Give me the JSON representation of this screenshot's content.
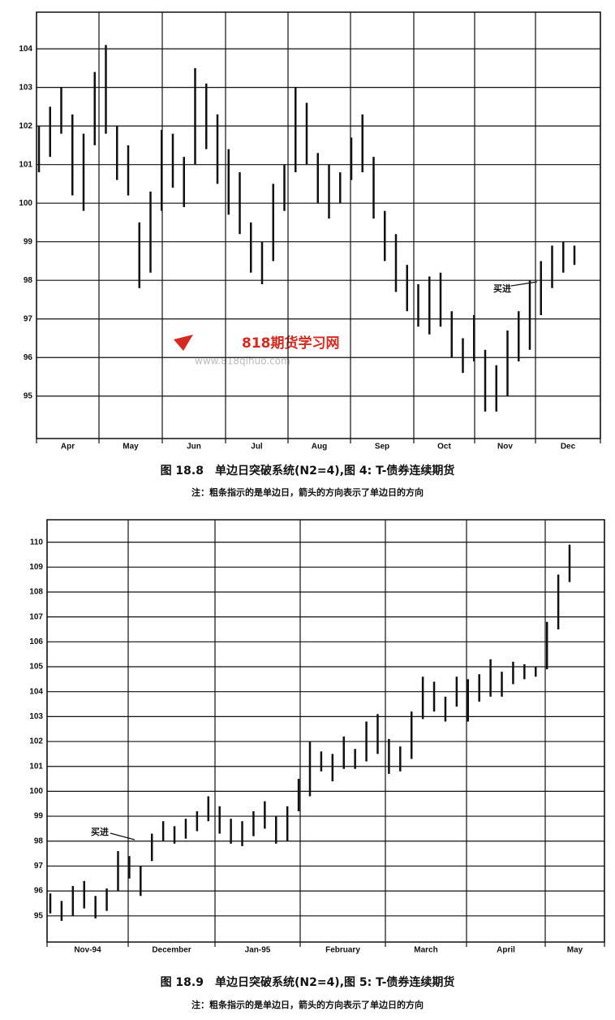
{
  "watermark": {
    "title": "818期货学习网",
    "url": "www.818qihuo.com"
  },
  "chart_data": [
    {
      "type": "ohlc",
      "title": "图 18.8　单边日突破系统(N2=4),图 4: T-债券连续期货",
      "subtitle": "注：粗条指示的是单边日，箭头的方向表示了单边日的方向",
      "annotation": "买进",
      "categories": [
        "Apr",
        "May",
        "Jun",
        "Jul",
        "Aug",
        "Sep",
        "Oct",
        "Nov",
        "Dec"
      ],
      "ylim": [
        93.9,
        104.95
      ],
      "yticks": [
        95,
        96,
        97,
        98,
        99,
        100,
        101,
        102,
        103,
        104
      ],
      "grid": true,
      "color": "#111111",
      "high": [
        102.0,
        102.5,
        103.0,
        102.3,
        101.8,
        103.4,
        104.1,
        102.0,
        101.5,
        99.5,
        100.3,
        101.9,
        101.8,
        101.2,
        103.5,
        103.1,
        102.3,
        101.4,
        100.8,
        99.5,
        99.0,
        100.5,
        101.0,
        103.0,
        102.6,
        101.3,
        101.0,
        100.8,
        101.7,
        102.3,
        101.2,
        99.8,
        99.2,
        98.4,
        97.9,
        98.1,
        98.2,
        97.2,
        96.5,
        97.1,
        96.2,
        95.8,
        96.7,
        97.2,
        98.0,
        98.5,
        98.9,
        99.0,
        98.9
      ],
      "low": [
        100.8,
        101.2,
        101.8,
        100.2,
        99.8,
        101.5,
        101.8,
        100.6,
        100.2,
        97.8,
        98.2,
        99.8,
        100.4,
        99.9,
        101.0,
        101.4,
        100.5,
        99.7,
        99.2,
        98.2,
        97.9,
        98.5,
        99.8,
        100.8,
        101.0,
        100.0,
        99.6,
        100.0,
        100.6,
        100.8,
        99.6,
        98.5,
        97.7,
        97.2,
        96.8,
        96.6,
        96.8,
        96.0,
        95.6,
        95.9,
        94.6,
        94.6,
        95.0,
        95.9,
        96.2,
        97.1,
        97.8,
        98.2,
        98.4
      ]
    },
    {
      "type": "ohlc",
      "title": "图 18.9　单边日突破系统(N2=4),图 5: T-债券连续期货",
      "subtitle": "注：粗条指示的是单边日，箭头的方向表示了单边日的方向",
      "annotation": "买进",
      "categories": [
        "Nov-94",
        "December",
        "Jan-95",
        "February",
        "March",
        "April",
        "May"
      ],
      "ylim": [
        93.95,
        110.9
      ],
      "yticks": [
        95,
        96,
        97,
        98,
        99,
        100,
        101,
        102,
        103,
        104,
        105,
        106,
        107,
        108,
        109,
        110
      ],
      "grid": true,
      "color": "#111111",
      "high": [
        95.9,
        95.6,
        96.2,
        96.4,
        95.8,
        96.1,
        97.6,
        97.4,
        97.0,
        98.3,
        98.8,
        98.6,
        98.9,
        99.2,
        99.8,
        99.4,
        98.9,
        98.8,
        99.2,
        99.6,
        99.0,
        99.4,
        100.5,
        102.0,
        101.6,
        101.5,
        102.2,
        101.7,
        102.8,
        103.1,
        102.1,
        101.8,
        103.2,
        104.6,
        104.4,
        103.8,
        104.6,
        104.5,
        104.7,
        105.3,
        104.8,
        105.2,
        105.1,
        105.0,
        106.8,
        108.7,
        109.9
      ],
      "low": [
        95.1,
        94.8,
        95.0,
        95.3,
        94.9,
        95.2,
        96.0,
        96.5,
        95.8,
        97.2,
        98.0,
        97.9,
        98.1,
        98.4,
        98.8,
        98.3,
        97.9,
        97.8,
        98.2,
        98.5,
        97.9,
        98.0,
        99.2,
        99.8,
        100.8,
        100.4,
        100.9,
        100.9,
        101.2,
        101.5,
        100.7,
        100.8,
        101.3,
        102.9,
        103.2,
        102.8,
        103.4,
        102.8,
        103.6,
        103.8,
        103.8,
        104.3,
        104.5,
        104.6,
        104.9,
        106.5,
        108.4
      ]
    }
  ]
}
